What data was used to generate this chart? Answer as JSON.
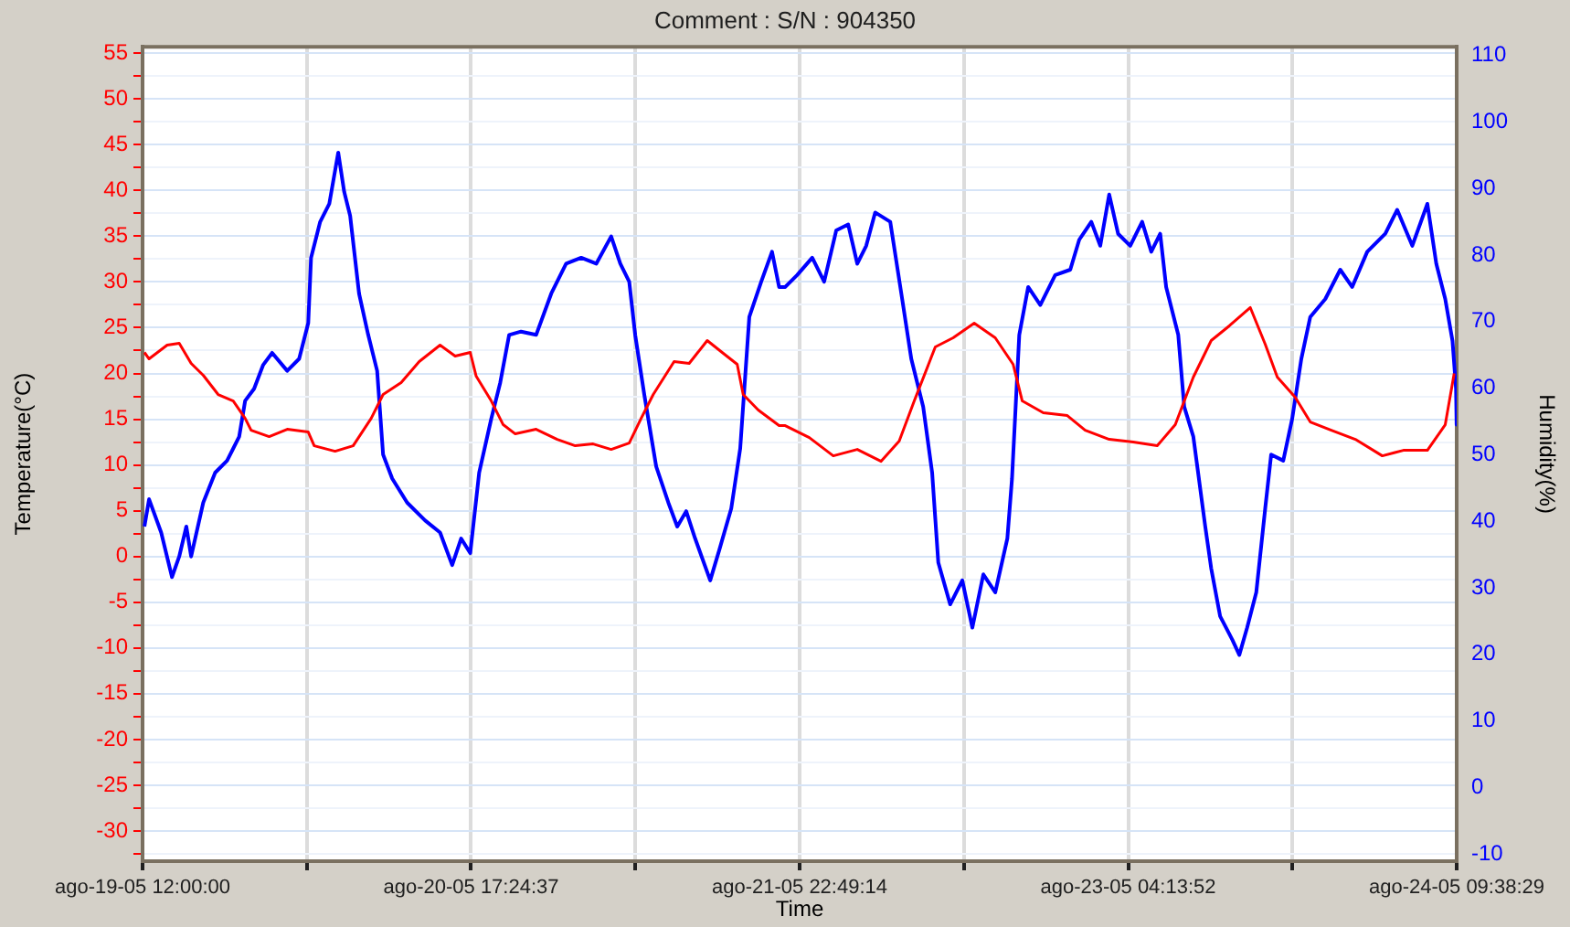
{
  "chart_data": {
    "type": "line",
    "title": "Comment : S/N : 904350",
    "xlabel": "Time",
    "ylabel": "Temperature(°C)",
    "y2label": "Humidity(%)",
    "xlim": [
      "--08-19T12:00",
      "--08-24T09:38:29"
    ],
    "xticks": [
      {
        "value": "--08-19T12:00",
        "label": "ago-19-05 12:00:00"
      },
      {
        "value": "--08-20T02:42:18",
        "label": null
      },
      {
        "value": "--08-20T17:24:37",
        "label": "ago-20-05 17:24:37"
      },
      {
        "value": "--08-21T08:06:55",
        "label": null
      },
      {
        "value": "--08-21T22:49:14",
        "label": "ago-21-05 22:49:14"
      },
      {
        "value": "--08-22T13:31:33",
        "label": null
      },
      {
        "value": "--08-23T04:13:52",
        "label": "ago-23-05 04:13:52"
      },
      {
        "value": "--08-23T18:56:11",
        "label": null
      },
      {
        "value": "--08-24T09:38:29",
        "label": "ago-24-05 09:38:29"
      }
    ],
    "ylim": [
      -33.3,
      55.7
    ],
    "yticks": [
      {
        "value": -32.5,
        "label": null
      },
      -30,
      {
        "value": -27.5,
        "label": null
      },
      -25,
      {
        "value": -22.5,
        "label": null
      },
      -20,
      {
        "value": -17.5,
        "label": null
      },
      -15,
      {
        "value": -12.5,
        "label": null
      },
      -10,
      {
        "value": -7.5,
        "label": null
      },
      -5,
      {
        "value": -2.5,
        "label": null
      },
      0,
      {
        "value": 2.5,
        "label": null
      },
      5,
      {
        "value": 7.5,
        "label": null
      },
      10,
      {
        "value": 12.5,
        "label": null
      },
      15,
      {
        "value": 17.5,
        "label": null
      },
      20,
      {
        "value": 22.5,
        "label": null
      },
      25,
      {
        "value": 27.5,
        "label": null
      },
      30,
      {
        "value": 32.5,
        "label": null
      },
      35,
      {
        "value": 37.5,
        "label": null
      },
      40,
      {
        "value": 42.5,
        "label": null
      },
      45,
      {
        "value": 47.5,
        "label": null
      },
      50,
      {
        "value": 52.5,
        "label": null
      },
      55
    ],
    "y2lim": [
      -11.1,
      111.3
    ],
    "y2ticks": [
      -10,
      0,
      10,
      20,
      30,
      40,
      50,
      60,
      70,
      80,
      90,
      100,
      110
    ],
    "grid": true,
    "marker": "none",
    "line_style": "solid",
    "series": [
      {
        "color": "#ff0000",
        "x": [
          "--08-19T12:10",
          "--08-19T12:35",
          "--08-19T14:12",
          "--08-19T15:17",
          "--08-19T16:21",
          "--08-19T17:26",
          "--08-19T18:46",
          "--08-19T20:07",
          "--08-19T21:11",
          "--08-19T21:43",
          "--08-19T23:20",
          "--08-20T00:57",
          "--08-20T02:50",
          "--08-20T03:22",
          "--08-20T05:14",
          "--08-20T06:51",
          "--08-20T08:28",
          "--08-20T09:32",
          "--08-20T11:09",
          "--08-20T12:46",
          "--08-20T14:38",
          "--08-20T15:59",
          "--08-20T17:20",
          "--08-20T17:52",
          "--08-20T19:13",
          "--08-20T20:17",
          "--08-20T21:22",
          "--08-20T23:14",
          "--08-21T01:07",
          "--08-21T02:44",
          "--08-21T04:20",
          "--08-21T05:57",
          "--08-21T07:34",
          "--08-21T08:38",
          "--08-21T09:43",
          "--08-21T11:35",
          "--08-21T12:56",
          "--08-21T14:33",
          "--08-21T15:53",
          "--08-21T17:14",
          "--08-21T17:46",
          "--08-21T19:07",
          "--08-21T20:59",
          "--08-21T21:32",
          "--08-21T23:41",
          "--08-22T01:50",
          "--08-22T03:59",
          "--08-22T06:07",
          "--08-22T07:44",
          "--08-22T09:05",
          "--08-22T10:58",
          "--08-22T12:34",
          "--08-22T14:27",
          "--08-22T16:20",
          "--08-22T17:56",
          "--08-22T18:45",
          "--08-22T20:38",
          "--08-22T22:47",
          "--08-23T00:23",
          "--08-23T02:32",
          "--08-23T04:41",
          "--08-23T06:50",
          "--08-23T08:27",
          "--08-23T10:04",
          "--08-23T11:40",
          "--08-23T13:17",
          "--08-23T15:10",
          "--08-23T16:30",
          "--08-23T17:35",
          "--08-23T19:11",
          "--08-23T20:32",
          "--08-23T22:25",
          "--08-24T00:34",
          "--08-24T02:59",
          "--08-24T04:52",
          "--08-24T07:01",
          "--08-24T08:37",
          "--08-24T09:25"
        ],
        "values": [
          22.3,
          21.6,
          23.1,
          23.3,
          21.1,
          19.8,
          17.7,
          17.0,
          15.1,
          13.8,
          13.1,
          13.9,
          13.6,
          12.1,
          11.5,
          12.1,
          15.1,
          17.7,
          19.0,
          21.3,
          23.1,
          21.9,
          22.3,
          19.7,
          17.0,
          14.4,
          13.4,
          13.9,
          12.8,
          12.1,
          12.3,
          11.7,
          12.4,
          15.1,
          17.7,
          21.3,
          21.1,
          23.6,
          22.3,
          21.0,
          17.7,
          16.0,
          14.3,
          14.3,
          13.0,
          11.0,
          11.7,
          10.4,
          12.6,
          17.0,
          22.9,
          23.9,
          25.5,
          23.9,
          21.0,
          17.0,
          15.7,
          15.4,
          13.8,
          12.8,
          12.5,
          12.1,
          14.4,
          19.6,
          23.6,
          25.2,
          27.2,
          23.2,
          19.6,
          17.4,
          14.7,
          13.8,
          12.8,
          11.0,
          11.6,
          11.6,
          14.4,
          20.0
        ]
      },
      {
        "color": "#0000ff",
        "axis": "y2",
        "x": [
          "--08-19T12:10",
          "--08-19T12:35",
          "--08-19T13:40",
          "--08-19T14:38",
          "--08-19T15:17",
          "--08-19T15:55",
          "--08-19T16:21",
          "--08-19T17:26",
          "--08-19T18:30",
          "--08-19T19:34",
          "--08-19T20:39",
          "--08-19T21:11",
          "--08-19T21:59",
          "--08-19T22:48",
          "--08-19T23:36",
          "--08-20T00:57",
          "--08-20T02:01",
          "--08-20T02:50",
          "--08-20T03:05",
          "--08-20T03:54",
          "--08-20T04:43",
          "--08-20T05:31",
          "--08-20T06:03",
          "--08-20T06:35",
          "--08-20T07:23",
          "--08-20T08:12",
          "--08-20T09:00",
          "--08-20T09:32",
          "--08-20T10:21",
          "--08-20T11:41",
          "--08-20T13:18",
          "--08-20T14:38",
          "--08-20T15:43",
          "--08-20T16:31",
          "--08-20T17:20",
          "--08-20T18:08",
          "--08-20T19:13",
          "--08-20T20:01",
          "--08-20T20:49",
          "--08-20T21:53",
          "--08-20T23:14",
          "--08-21T00:35",
          "--08-21T01:55",
          "--08-21T03:16",
          "--08-21T04:37",
          "--08-21T05:57",
          "--08-21T06:46",
          "--08-21T07:34",
          "--08-21T08:06",
          "--08-21T08:55",
          "--08-21T09:59",
          "--08-21T11:04",
          "--08-21T11:52",
          "--08-21T12:40",
          "--08-21T13:28",
          "--08-21T14:49",
          "--08-21T15:37",
          "--08-21T16:42",
          "--08-21T17:30",
          "--08-21T18:19",
          "--08-21T19:23",
          "--08-21T20:21",
          "--08-21T20:59",
          "--08-21T21:32",
          "--08-21T22:36",
          "--08-21T23:57",
          "--08-22T01:01",
          "--08-22T02:06",
          "--08-22T03:10",
          "--08-22T03:59",
          "--08-22T04:47",
          "--08-22T05:35",
          "--08-22T06:56",
          "--08-22T08:00",
          "--08-22T08:49",
          "--08-22T09:53",
          "--08-22T10:41",
          "--08-22T11:14",
          "--08-22T12:18",
          "--08-22T13:23",
          "--08-22T14:17",
          "--08-22T15:16",
          "--08-22T16:20",
          "--08-22T17:25",
          "--08-22T17:50",
          "--08-22T18:29",
          "--08-22T19:17",
          "--08-22T20:22",
          "--08-22T21:42",
          "--08-22T23:03",
          "--08-22T23:51",
          "--08-23T00:56",
          "--08-23T01:44",
          "--08-23T02:32",
          "--08-23T03:20",
          "--08-23T04:25",
          "--08-23T05:29",
          "--08-23T06:18",
          "--08-23T07:06",
          "--08-23T07:38",
          "--08-23T08:43",
          "--08-23T09:15",
          "--08-23T10:04",
          "--08-23T11:08",
          "--08-23T11:40",
          "--08-23T12:28",
          "--08-23T13:33",
          "--08-23T14:11",
          "--08-23T14:53",
          "--08-23T15:42",
          "--08-23T16:30",
          "--08-23T17:02",
          "--08-23T18:07",
          "--08-23T18:55",
          "--08-23T19:44",
          "--08-23T20:32",
          "--08-23T21:53",
          "--08-23T23:13",
          "--08-24T00:17",
          "--08-24T01:38",
          "--08-24T03:15",
          "--08-24T04:19",
          "--08-24T05:40",
          "--08-24T07:01",
          "--08-24T07:49",
          "--08-24T08:37",
          "--08-24T09:16",
          "--08-24T09:35",
          "--08-24T09:38"
        ],
        "values": [
          39.2,
          43.3,
          38.3,
          31.6,
          34.7,
          39.2,
          34.7,
          42.8,
          47.3,
          49.1,
          52.7,
          58.1,
          59.9,
          63.5,
          65.3,
          62.6,
          64.4,
          69.8,
          79.6,
          85.0,
          87.7,
          95.4,
          89.5,
          85.9,
          74.2,
          68.0,
          62.6,
          50.0,
          46.4,
          42.8,
          40.1,
          38.3,
          33.4,
          37.4,
          35.2,
          47.3,
          55.4,
          60.8,
          68.0,
          68.5,
          68.0,
          74.2,
          78.7,
          79.6,
          78.7,
          82.8,
          78.7,
          76.0,
          68.0,
          59.0,
          48.2,
          42.8,
          39.2,
          41.5,
          37.4,
          31.1,
          35.6,
          41.9,
          50.9,
          70.7,
          76.0,
          80.5,
          75.2,
          75.2,
          77.0,
          79.6,
          76.0,
          83.7,
          84.6,
          78.7,
          81.4,
          86.4,
          85.0,
          73.4,
          64.4,
          57.2,
          47.3,
          33.8,
          27.5,
          31.1,
          24.0,
          32.0,
          29.3,
          37.4,
          46.4,
          68.0,
          75.2,
          72.5,
          77.0,
          77.8,
          82.3,
          85.0,
          81.4,
          89.1,
          83.2,
          81.4,
          85.0,
          80.5,
          83.2,
          75.2,
          68.0,
          57.2,
          52.7,
          39.2,
          32.9,
          25.7,
          22.2,
          19.9,
          24.0,
          29.3,
          41.9,
          50.0,
          49.1,
          55.4,
          64.4,
          70.7,
          73.4,
          77.8,
          75.2,
          80.5,
          83.2,
          86.8,
          81.4,
          87.7,
          78.7,
          73.4,
          67.1,
          59.9,
          54.5
        ]
      }
    ]
  }
}
